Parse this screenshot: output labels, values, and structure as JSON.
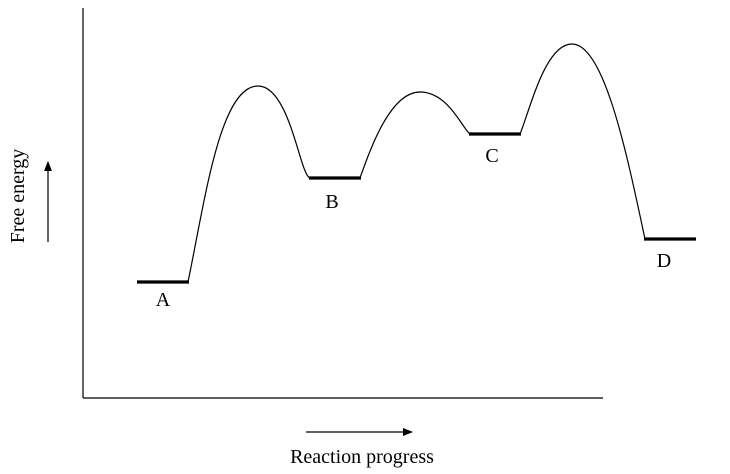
{
  "diagram": {
    "y_axis_label": "Free energy",
    "x_axis_label": "Reaction progress",
    "states": [
      {
        "label": "A"
      },
      {
        "label": "B"
      },
      {
        "label": "C"
      },
      {
        "label": "D"
      }
    ],
    "colors": {
      "line": "#000000",
      "background": "#ffffff"
    }
  }
}
